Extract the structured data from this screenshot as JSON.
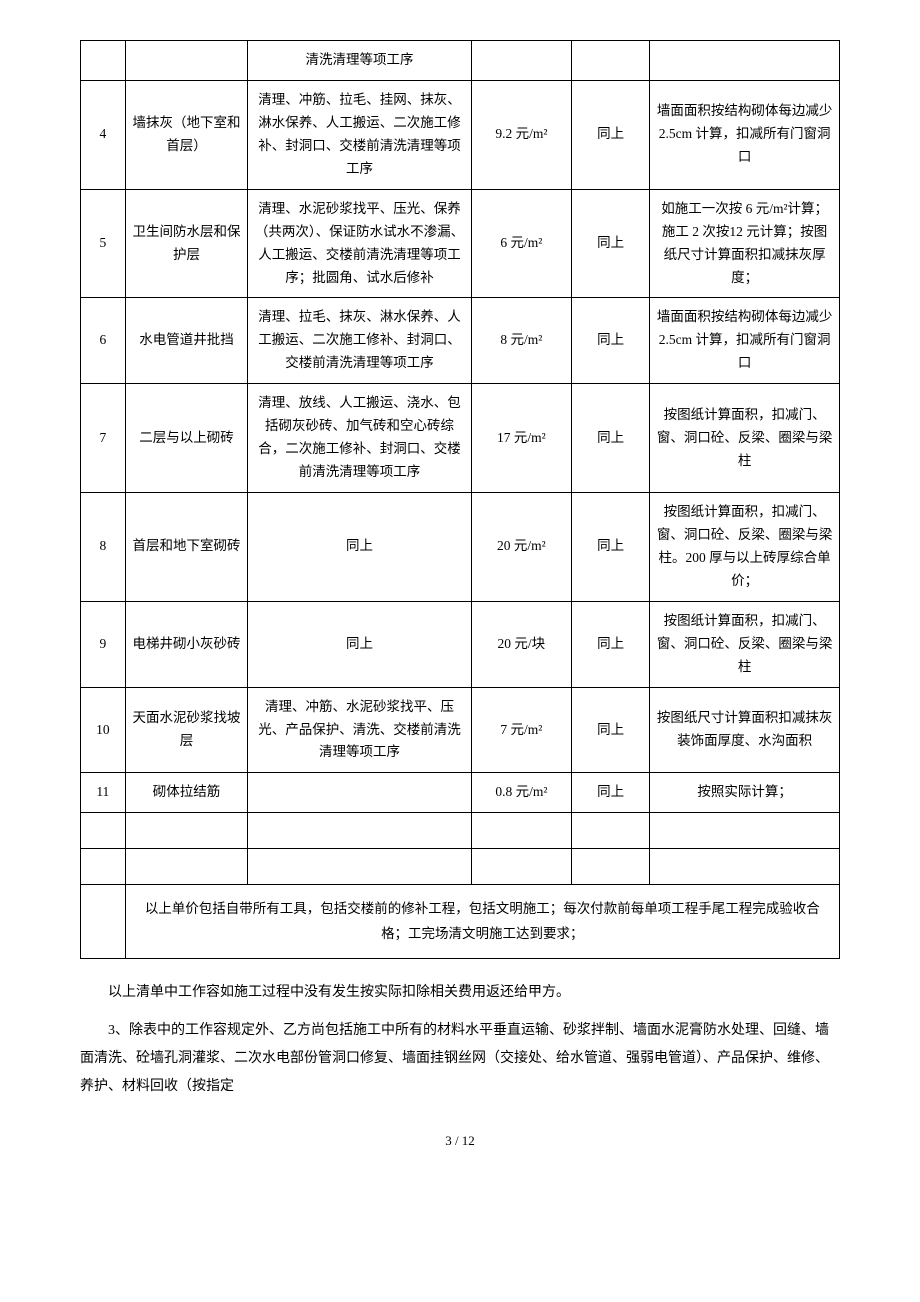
{
  "table": {
    "rows": [
      {
        "num": "",
        "name": "",
        "desc": "清洗清理等项工序",
        "price": "",
        "ref": "",
        "note": ""
      },
      {
        "num": "4",
        "name": "墙抹灰（地下室和首层）",
        "desc": "清理、冲筋、拉毛、挂网、抹灰、淋水保养、人工搬运、二次施工修补、封洞口、交楼前清洗清理等项工序",
        "price": "9.2 元/m²",
        "ref": "同上",
        "note": "墙面面积按结构砌体每边减少 2.5cm 计算，扣减所有门窗洞口"
      },
      {
        "num": "5",
        "name": "卫生间防水层和保护层",
        "desc": "清理、水泥砂浆找平、压光、保养（共两次）、保证防水试水不渗漏、人工搬运、交楼前清洗清理等项工序；批圆角、试水后修补",
        "price": "6 元/m²",
        "ref": "同上",
        "note": "如施工一次按 6 元/m²计算；施工 2 次按12 元计算；按图纸尺寸计算面积扣减抹灰厚度；"
      },
      {
        "num": "6",
        "name": "水电管道井批挡",
        "desc": "清理、拉毛、抹灰、淋水保养、人工搬运、二次施工修补、封洞口、交楼前清洗清理等项工序",
        "price": "8 元/m²",
        "ref": "同上",
        "note": "墙面面积按结构砌体每边减少 2.5cm 计算，扣减所有门窗洞口"
      },
      {
        "num": "7",
        "name": "二层与以上砌砖",
        "desc": "清理、放线、人工搬运、浇水、包括砌灰砂砖、加气砖和空心砖综合，二次施工修补、封洞口、交楼前清洗清理等项工序",
        "price": "17 元/m²",
        "ref": "同上",
        "note": "按图纸计算面积，扣减门、窗、洞口砼、反梁、圈梁与梁柱"
      },
      {
        "num": "8",
        "name": "首层和地下室砌砖",
        "desc": "同上",
        "price": "20 元/m²",
        "ref": "同上",
        "note": "按图纸计算面积，扣减门、窗、洞口砼、反梁、圈梁与梁柱。200 厚与以上砖厚综合单价；"
      },
      {
        "num": "9",
        "name": "电梯井砌小灰砂砖",
        "desc": "同上",
        "price": "20 元/块",
        "ref": "同上",
        "note": "按图纸计算面积，扣减门、窗、洞口砼、反梁、圈梁与梁柱"
      },
      {
        "num": "10",
        "name": "天面水泥砂浆找坡层",
        "desc": "清理、冲筋、水泥砂浆找平、压光、产品保护、清洗、交楼前清洗清理等项工序",
        "price": "7 元/m²",
        "ref": "同上",
        "note": "按图纸尺寸计算面积扣减抹灰装饰面厚度、水沟面积"
      },
      {
        "num": "11",
        "name": "砌体拉结筋",
        "desc": "",
        "price": "0.8 元/m²",
        "ref": "同上",
        "note": "按照实际计算；"
      }
    ],
    "summary": "以上单价包括自带所有工具，包括交楼前的修补工程，包括文明施工；每次付款前每单项工程手尾工程完成验收合格；工完场清文明施工达到要求；"
  },
  "paragraphs": {
    "p1": "以上清单中工作容如施工过程中没有发生按实际扣除相关费用返还给甲方。",
    "p2": "3、除表中的工作容规定外、乙方尚包括施工中所有的材料水平垂直运输、砂浆拌制、墙面水泥膏防水处理、回缝、墙面清洗、砼墙孔洞灌浆、二次水电部份管洞口修复、墙面挂钢丝网（交接处、给水管道、强弱电管道）、产品保护、维修、养护、材料回收（按指定"
  },
  "footer": {
    "page": "3  /  12"
  }
}
